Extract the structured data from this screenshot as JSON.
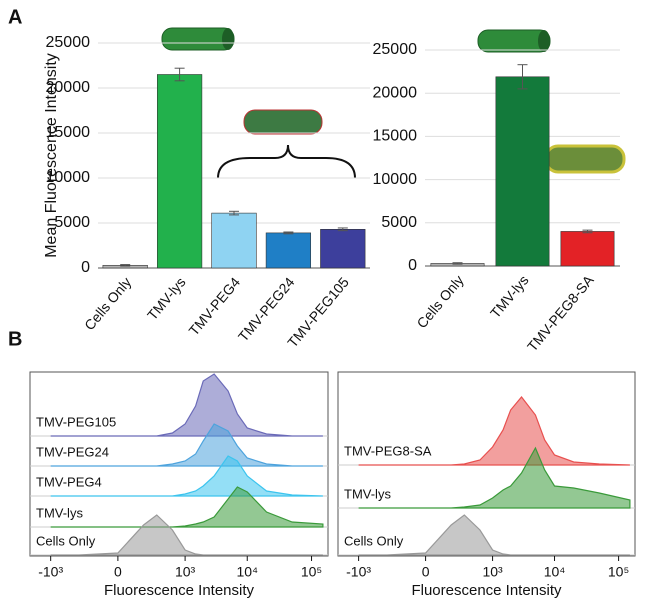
{
  "panel_labels": [
    "A",
    "B"
  ],
  "chart_data": [
    {
      "type": "bar",
      "y_label": "Mean Fluorescence Intensity",
      "categories": [
        "Cells Only",
        "TMV-lys",
        "TMV-PEG4",
        "TMV-PEG24",
        "TMV-PEG105"
      ],
      "values": [
        300,
        21500,
        6100,
        3900,
        4300
      ],
      "errors": [
        80,
        700,
        200,
        100,
        150
      ],
      "colors": [
        "#b3b3b3",
        "#22b14c",
        "#8fd3f2",
        "#1f7fc6",
        "#3d3f9c"
      ],
      "ylim": [
        0,
        25000
      ],
      "yticks": [
        0,
        5000,
        10000,
        15000,
        20000,
        25000
      ],
      "grid": true
    },
    {
      "type": "bar",
      "categories": [
        "Cells Only",
        "TMV-lys",
        "TMV-PEG8-SA"
      ],
      "values": [
        300,
        21900,
        4000
      ],
      "errors": [
        80,
        1400,
        150
      ],
      "colors": [
        "#b3b3b3",
        "#137a3b",
        "#e32226"
      ],
      "ylim": [
        0,
        25000
      ],
      "yticks": [
        0,
        5000,
        10000,
        15000,
        20000,
        25000
      ],
      "grid": true
    },
    {
      "type": "area",
      "x_label": "Fluorescence Intensity",
      "x": [
        -1000,
        -300,
        0,
        150,
        300,
        600,
        1000,
        1500,
        2000,
        3000,
        5000,
        7000,
        10000,
        20000,
        50000,
        150000
      ],
      "series": [
        {
          "name": "TMV-PEG105",
          "color": "#6a6ab8",
          "values": [
            0,
            0,
            0,
            0,
            0,
            3,
            12,
            30,
            55,
            62,
            45,
            22,
            8,
            2,
            0,
            0
          ]
        },
        {
          "name": "TMV-PEG24",
          "color": "#4da3dd",
          "values": [
            0,
            0,
            0,
            0,
            0,
            2,
            5,
            12,
            25,
            42,
            35,
            20,
            8,
            2,
            0,
            0
          ]
        },
        {
          "name": "TMV-PEG4",
          "color": "#3cc4ee",
          "values": [
            0,
            0,
            0,
            0,
            0,
            0,
            2,
            5,
            10,
            20,
            40,
            35,
            20,
            5,
            1,
            0
          ]
        },
        {
          "name": "TMV-lys",
          "color": "#3a9a3a",
          "values": [
            0,
            0,
            0,
            0,
            0,
            0,
            1,
            3,
            5,
            10,
            28,
            40,
            35,
            15,
            5,
            3
          ]
        },
        {
          "name": "Cells Only",
          "color": "#999999",
          "values": [
            0,
            0,
            2,
            30,
            40,
            25,
            5,
            1,
            0,
            0,
            0,
            0,
            0,
            0,
            0,
            0
          ]
        }
      ],
      "xlim": [
        -2200,
        180000
      ],
      "xticks": [
        {
          "value": -1000,
          "label": "-10³"
        },
        0,
        {
          "value": 1000,
          "label": "10³"
        },
        {
          "value": 10000,
          "label": "10⁴"
        },
        {
          "value": 100000,
          "label": "10⁵"
        }
      ]
    },
    {
      "type": "area",
      "x_label": "Fluorescence Intensity",
      "x": [
        -1000,
        -300,
        0,
        150,
        300,
        600,
        1000,
        1500,
        2000,
        3000,
        5000,
        7000,
        10000,
        20000,
        50000,
        150000
      ],
      "series": [
        {
          "name": "TMV-PEG8-SA",
          "color": "#e8504f",
          "values": [
            0,
            0,
            0,
            0,
            1,
            5,
            18,
            35,
            55,
            68,
            50,
            25,
            10,
            3,
            1,
            0
          ]
        },
        {
          "name": "TMV-lys",
          "color": "#3a9a3a",
          "values": [
            0,
            0,
            0,
            0,
            1,
            3,
            10,
            18,
            22,
            35,
            60,
            38,
            22,
            20,
            15,
            8
          ]
        },
        {
          "name": "Cells Only",
          "color": "#999999",
          "values": [
            0,
            0,
            2,
            30,
            40,
            25,
            5,
            1,
            0,
            0,
            0,
            0,
            0,
            0,
            0,
            0
          ]
        }
      ],
      "xlim": [
        -2200,
        180000
      ],
      "xticks": [
        {
          "value": -1000,
          "label": "-10³"
        },
        0,
        {
          "value": 1000,
          "label": "10³"
        },
        {
          "value": 10000,
          "label": "10⁴"
        },
        {
          "value": 100000,
          "label": "10⁵"
        }
      ]
    }
  ]
}
